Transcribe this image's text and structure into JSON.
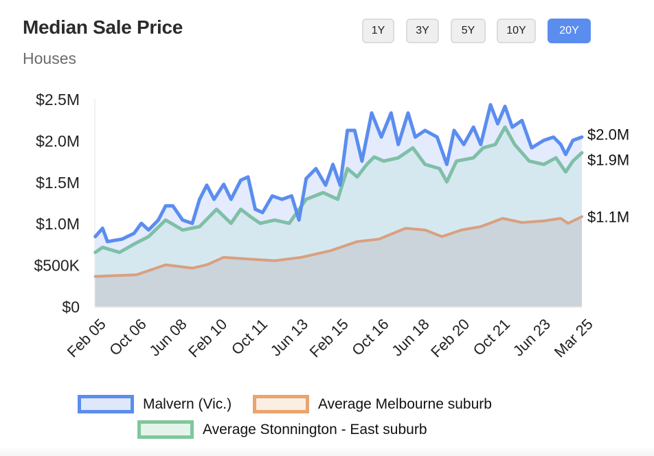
{
  "header": {
    "title": "Median Sale Price",
    "subtitle": "Houses"
  },
  "range_buttons": [
    {
      "label": "1Y",
      "active": false
    },
    {
      "label": "3Y",
      "active": false
    },
    {
      "label": "5Y",
      "active": false
    },
    {
      "label": "10Y",
      "active": false
    },
    {
      "label": "20Y",
      "active": true
    }
  ],
  "chart_data": {
    "type": "area",
    "title": "Median Sale Price",
    "subtitle": "Houses",
    "xlabel": "",
    "ylabel": "",
    "xlim": [
      2005.08,
      2025.17
    ],
    "ylim": [
      0,
      2.5
    ],
    "y_unit": "$M",
    "y_ticks": [
      {
        "value": 0,
        "label": "$0"
      },
      {
        "value": 0.5,
        "label": "$500K"
      },
      {
        "value": 1.0,
        "label": "$1.0M"
      },
      {
        "value": 1.5,
        "label": "$1.5M"
      },
      {
        "value": 2.0,
        "label": "$2.0M"
      },
      {
        "value": 2.5,
        "label": "$2.5M"
      }
    ],
    "x_ticks": [
      {
        "value": 2005.08,
        "label": "Feb 05"
      },
      {
        "value": 2006.75,
        "label": "Oct 06"
      },
      {
        "value": 2008.42,
        "label": "Jun 08"
      },
      {
        "value": 2010.08,
        "label": "Feb 10"
      },
      {
        "value": 2011.75,
        "label": "Oct 11"
      },
      {
        "value": 2013.42,
        "label": "Jun 13"
      },
      {
        "value": 2015.08,
        "label": "Feb 15"
      },
      {
        "value": 2016.75,
        "label": "Oct 16"
      },
      {
        "value": 2018.42,
        "label": "Jun 18"
      },
      {
        "value": 2020.08,
        "label": "Feb 20"
      },
      {
        "value": 2021.75,
        "label": "Oct 21"
      },
      {
        "value": 2023.42,
        "label": "Jun 23"
      },
      {
        "value": 2025.17,
        "label": "Mar 25"
      }
    ],
    "legend_position": "bottom",
    "series": [
      {
        "name": "Malvern (Vic.)",
        "color": "#5b8def",
        "fill": "#dfe8fb",
        "end_label": "$2.0M",
        "points": [
          [
            2005.1,
            0.84
          ],
          [
            2005.4,
            0.94
          ],
          [
            2005.6,
            0.78
          ],
          [
            2006.2,
            0.81
          ],
          [
            2006.7,
            0.88
          ],
          [
            2007.0,
            1.0
          ],
          [
            2007.3,
            0.92
          ],
          [
            2007.7,
            1.04
          ],
          [
            2008.0,
            1.21
          ],
          [
            2008.3,
            1.21
          ],
          [
            2008.7,
            1.04
          ],
          [
            2009.1,
            1.0
          ],
          [
            2009.4,
            1.29
          ],
          [
            2009.7,
            1.46
          ],
          [
            2010.0,
            1.29
          ],
          [
            2010.4,
            1.47
          ],
          [
            2010.7,
            1.29
          ],
          [
            2011.1,
            1.52
          ],
          [
            2011.4,
            1.56
          ],
          [
            2011.7,
            1.17
          ],
          [
            2012.0,
            1.13
          ],
          [
            2012.4,
            1.33
          ],
          [
            2012.8,
            1.29
          ],
          [
            2013.2,
            1.33
          ],
          [
            2013.5,
            1.04
          ],
          [
            2013.8,
            1.54
          ],
          [
            2014.2,
            1.66
          ],
          [
            2014.6,
            1.46
          ],
          [
            2014.9,
            1.71
          ],
          [
            2015.2,
            1.46
          ],
          [
            2015.5,
            2.12
          ],
          [
            2015.8,
            2.12
          ],
          [
            2016.1,
            1.75
          ],
          [
            2016.5,
            2.33
          ],
          [
            2016.9,
            2.04
          ],
          [
            2017.3,
            2.33
          ],
          [
            2017.6,
            1.95
          ],
          [
            2018.0,
            2.33
          ],
          [
            2018.3,
            2.04
          ],
          [
            2018.7,
            2.12
          ],
          [
            2019.2,
            2.04
          ],
          [
            2019.6,
            1.71
          ],
          [
            2019.9,
            2.12
          ],
          [
            2020.3,
            1.95
          ],
          [
            2020.7,
            2.16
          ],
          [
            2021.0,
            1.95
          ],
          [
            2021.4,
            2.43
          ],
          [
            2021.7,
            2.2
          ],
          [
            2022.0,
            2.41
          ],
          [
            2022.3,
            2.16
          ],
          [
            2022.7,
            2.24
          ],
          [
            2023.1,
            1.91
          ],
          [
            2023.6,
            2.0
          ],
          [
            2024.0,
            2.04
          ],
          [
            2024.3,
            1.95
          ],
          [
            2024.5,
            1.83
          ],
          [
            2024.8,
            2.0
          ],
          [
            2025.17,
            2.04
          ]
        ]
      },
      {
        "name": "Average Stonnington - East suburb",
        "color": "#7fbfa8",
        "fill": "#d3e7ec",
        "end_label": "$1.9M",
        "points": [
          [
            2005.1,
            0.65
          ],
          [
            2005.4,
            0.71
          ],
          [
            2006.1,
            0.65
          ],
          [
            2006.7,
            0.75
          ],
          [
            2007.3,
            0.84
          ],
          [
            2008.0,
            1.04
          ],
          [
            2008.7,
            0.92
          ],
          [
            2009.4,
            0.96
          ],
          [
            2010.1,
            1.17
          ],
          [
            2010.7,
            1.0
          ],
          [
            2011.1,
            1.17
          ],
          [
            2011.5,
            1.08
          ],
          [
            2011.9,
            1.0
          ],
          [
            2012.5,
            1.04
          ],
          [
            2013.1,
            1.0
          ],
          [
            2013.8,
            1.29
          ],
          [
            2014.5,
            1.37
          ],
          [
            2015.1,
            1.29
          ],
          [
            2015.5,
            1.66
          ],
          [
            2015.9,
            1.56
          ],
          [
            2016.3,
            1.71
          ],
          [
            2016.6,
            1.8
          ],
          [
            2017.0,
            1.75
          ],
          [
            2017.6,
            1.79
          ],
          [
            2018.2,
            1.91
          ],
          [
            2018.7,
            1.71
          ],
          [
            2019.3,
            1.66
          ],
          [
            2019.6,
            1.5
          ],
          [
            2020.0,
            1.75
          ],
          [
            2020.7,
            1.79
          ],
          [
            2021.1,
            1.91
          ],
          [
            2021.6,
            1.95
          ],
          [
            2022.0,
            2.16
          ],
          [
            2022.4,
            1.95
          ],
          [
            2023.0,
            1.75
          ],
          [
            2023.6,
            1.71
          ],
          [
            2024.1,
            1.79
          ],
          [
            2024.5,
            1.62
          ],
          [
            2024.8,
            1.75
          ],
          [
            2025.17,
            1.85
          ]
        ]
      },
      {
        "name": "Average Melbourne suburb",
        "color": "#d9a07f",
        "fill": "#c8d0d6",
        "end_label": "$1.1M",
        "points": [
          [
            2005.1,
            0.36
          ],
          [
            2006.8,
            0.38
          ],
          [
            2008.0,
            0.5
          ],
          [
            2009.1,
            0.46
          ],
          [
            2009.7,
            0.5
          ],
          [
            2010.4,
            0.59
          ],
          [
            2011.4,
            0.57
          ],
          [
            2012.5,
            0.55
          ],
          [
            2013.6,
            0.59
          ],
          [
            2014.8,
            0.67
          ],
          [
            2015.9,
            0.78
          ],
          [
            2016.8,
            0.81
          ],
          [
            2017.9,
            0.94
          ],
          [
            2018.7,
            0.92
          ],
          [
            2019.4,
            0.84
          ],
          [
            2020.2,
            0.92
          ],
          [
            2021.0,
            0.96
          ],
          [
            2021.9,
            1.06
          ],
          [
            2022.7,
            1.01
          ],
          [
            2023.6,
            1.03
          ],
          [
            2024.3,
            1.06
          ],
          [
            2024.6,
            1.0
          ],
          [
            2025.17,
            1.08
          ]
        ]
      }
    ]
  },
  "legend": [
    {
      "label": "Malvern (Vic.)",
      "border": "#5b8def",
      "fill": "#dfe8fb"
    },
    {
      "label": "Average Melbourne suburb",
      "border": "#e8a56f",
      "fill": "#fbeee3"
    },
    {
      "label": "Average Stonnington - East suburb",
      "border": "#7fc79c",
      "fill": "#e5f4ea"
    }
  ]
}
